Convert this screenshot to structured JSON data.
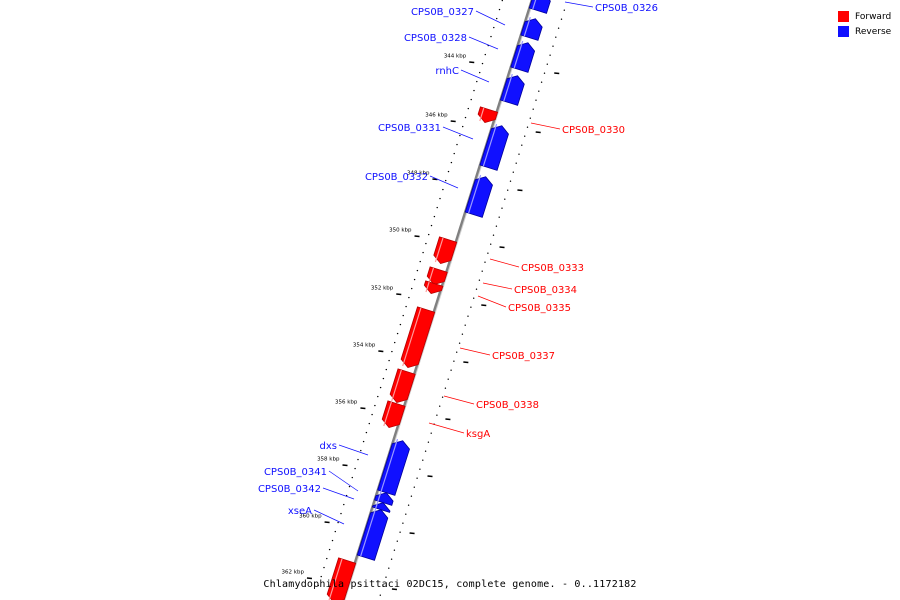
{
  "caption": "Chlamydophila psittaci 02DC15, complete genome. - 0..1172182",
  "legend": {
    "forward": {
      "label": "Forward",
      "color": "#ff0000"
    },
    "reverse": {
      "label": "Reverse",
      "color": "#1010ff"
    }
  },
  "colors": {
    "forward": "#ff0000",
    "forward_dark": "#b40000",
    "forward_light": "#ff9a9a",
    "reverse": "#1010ff",
    "reverse_dark": "#00009a",
    "reverse_light": "#9a9aff",
    "axis": "#808080"
  },
  "ticks": [
    {
      "kbp": 344,
      "label": "344 kbp"
    },
    {
      "kbp": 346,
      "label": "346 kbp"
    },
    {
      "kbp": 348,
      "label": "348 kbp"
    },
    {
      "kbp": 350,
      "label": "350 kbp"
    },
    {
      "kbp": 352,
      "label": "352 kbp"
    },
    {
      "kbp": 354,
      "label": "354 kbp"
    },
    {
      "kbp": 356,
      "label": "356 kbp"
    },
    {
      "kbp": 358,
      "label": "358 kbp"
    },
    {
      "kbp": 360,
      "label": "360 kbp"
    },
    {
      "kbp": 362,
      "label": "362 kbp"
    }
  ],
  "genes": [
    {
      "name": "CPS0B_0326",
      "strand": "reverse"
    },
    {
      "name": "CPS0B_0327",
      "strand": "reverse"
    },
    {
      "name": "CPS0B_0328",
      "strand": "reverse"
    },
    {
      "name": "rnhC",
      "strand": "reverse"
    },
    {
      "name": "CPS0B_0330",
      "strand": "forward"
    },
    {
      "name": "CPS0B_0331",
      "strand": "reverse"
    },
    {
      "name": "CPS0B_0332",
      "strand": "reverse"
    },
    {
      "name": "CPS0B_0333",
      "strand": "forward"
    },
    {
      "name": "CPS0B_0334",
      "strand": "forward"
    },
    {
      "name": "CPS0B_0335",
      "strand": "forward"
    },
    {
      "name": "CPS0B_0337",
      "strand": "forward"
    },
    {
      "name": "CPS0B_0338",
      "strand": "forward"
    },
    {
      "name": "ksgA",
      "strand": "forward"
    },
    {
      "name": "dxs",
      "strand": "reverse"
    },
    {
      "name": "CPS0B_0341",
      "strand": "reverse"
    },
    {
      "name": "CPS0B_0342",
      "strand": "reverse"
    },
    {
      "name": "xseA",
      "strand": "reverse"
    },
    {
      "name": "",
      "strand": "forward"
    }
  ]
}
